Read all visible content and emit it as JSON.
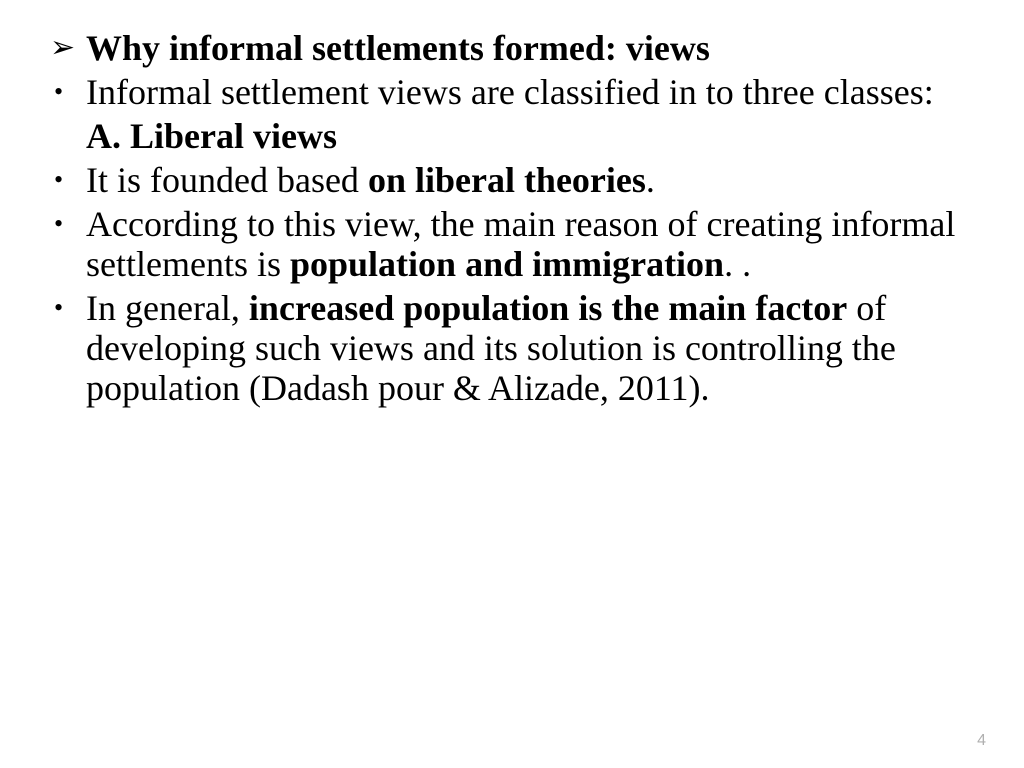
{
  "heading": "Why informal settlements formed: views",
  "bullets": {
    "intro": "Informal settlement views are classified in to three classes:",
    "section_a": "A. Liberal views",
    "b1_pre": "It is founded based ",
    "b1_bold": "on liberal theories",
    "b1_post": ".",
    "b2_pre": "According to this view, the main reason of creating informal settlements is ",
    "b2_bold": "population and immigration",
    "b2_post": ". .",
    "b3_pre": "In general, ",
    "b3_bold": "increased population is the main factor",
    "b3_post": " of developing such views and its solution is controlling the population (Dadash pour & Alizade, 2011)."
  },
  "page_number": "4",
  "arrow_glyph": "➢",
  "dot_glyph": "•"
}
